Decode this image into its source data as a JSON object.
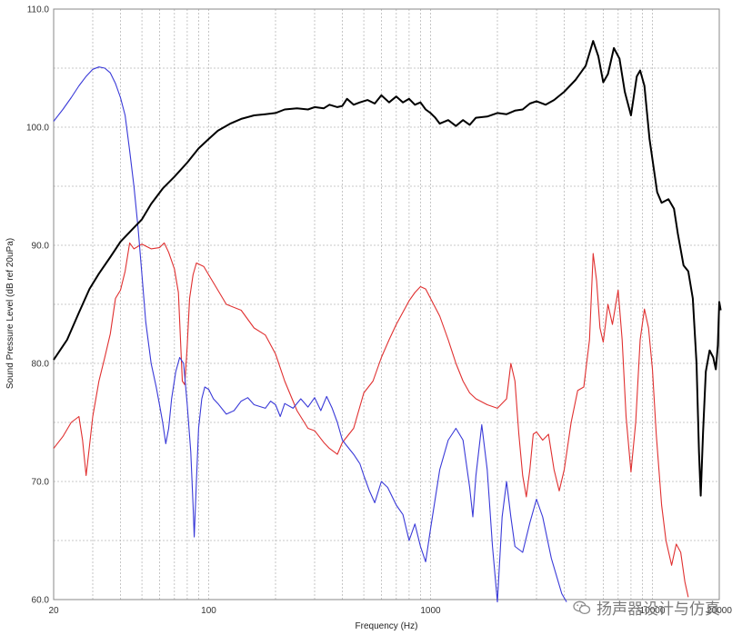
{
  "chart_data": {
    "type": "line",
    "xlabel": "Frequency (Hz)",
    "ylabel": "Sound Pressure Level (dB ref 20uPa)",
    "xscale": "log",
    "xlim": [
      20,
      20000
    ],
    "ylim": [
      60,
      110
    ],
    "x_ticks": [
      {
        "value": 20,
        "label": "20"
      },
      {
        "value": 100,
        "label": "100"
      },
      {
        "value": 1000,
        "label": "1000"
      },
      {
        "value": 10000,
        "label": "10000"
      },
      {
        "value": 20000,
        "label": "20000"
      }
    ],
    "y_ticks": [
      {
        "value": 60,
        "label": "60.0"
      },
      {
        "value": 70,
        "label": "70.0"
      },
      {
        "value": 80,
        "label": "80.0"
      },
      {
        "value": 90,
        "label": "90.0"
      },
      {
        "value": 100,
        "label": "100.0"
      },
      {
        "value": 110,
        "label": "110.0"
      }
    ],
    "grid": true,
    "series": [
      {
        "color": "#000000",
        "points": [
          [
            20,
            80.3
          ],
          [
            23,
            82
          ],
          [
            26,
            84.3
          ],
          [
            29,
            86.3
          ],
          [
            32,
            87.6
          ],
          [
            36,
            89
          ],
          [
            40,
            90.3
          ],
          [
            45,
            91.3
          ],
          [
            50,
            92.2
          ],
          [
            55,
            93.5
          ],
          [
            62,
            94.8
          ],
          [
            70,
            95.8
          ],
          [
            80,
            97
          ],
          [
            90,
            98.2
          ],
          [
            100,
            99
          ],
          [
            110,
            99.7
          ],
          [
            125,
            100.3
          ],
          [
            140,
            100.7
          ],
          [
            160,
            101
          ],
          [
            180,
            101.1
          ],
          [
            200,
            101.2
          ],
          [
            220,
            101.5
          ],
          [
            250,
            101.6
          ],
          [
            280,
            101.5
          ],
          [
            300,
            101.7
          ],
          [
            330,
            101.6
          ],
          [
            350,
            101.9
          ],
          [
            380,
            101.7
          ],
          [
            400,
            101.8
          ],
          [
            420,
            102.4
          ],
          [
            450,
            101.9
          ],
          [
            480,
            102.1
          ],
          [
            520,
            102.3
          ],
          [
            560,
            102
          ],
          [
            600,
            102.7
          ],
          [
            650,
            102.1
          ],
          [
            700,
            102.6
          ],
          [
            750,
            102.1
          ],
          [
            800,
            102.4
          ],
          [
            850,
            101.9
          ],
          [
            900,
            102.1
          ],
          [
            950,
            101.5
          ],
          [
            1000,
            101.2
          ],
          [
            1050,
            100.8
          ],
          [
            1100,
            100.3
          ],
          [
            1200,
            100.6
          ],
          [
            1300,
            100.1
          ],
          [
            1400,
            100.6
          ],
          [
            1500,
            100.2
          ],
          [
            1600,
            100.8
          ],
          [
            1800,
            100.9
          ],
          [
            2000,
            101.2
          ],
          [
            2200,
            101.1
          ],
          [
            2400,
            101.4
          ],
          [
            2600,
            101.5
          ],
          [
            2800,
            102
          ],
          [
            3000,
            102.2
          ],
          [
            3300,
            101.9
          ],
          [
            3600,
            102.3
          ],
          [
            4000,
            103
          ],
          [
            4500,
            104
          ],
          [
            5000,
            105.2
          ],
          [
            5400,
            107.3
          ],
          [
            5700,
            106
          ],
          [
            6000,
            103.8
          ],
          [
            6300,
            104.5
          ],
          [
            6700,
            106.7
          ],
          [
            7100,
            105.8
          ],
          [
            7500,
            103
          ],
          [
            8000,
            101
          ],
          [
            8500,
            104.3
          ],
          [
            8800,
            104.8
          ],
          [
            9200,
            103.5
          ],
          [
            9700,
            99
          ],
          [
            10500,
            94.5
          ],
          [
            11000,
            93.6
          ],
          [
            11800,
            93.9
          ],
          [
            12500,
            93.1
          ],
          [
            13000,
            91
          ],
          [
            13800,
            88.3
          ],
          [
            14500,
            87.8
          ],
          [
            15200,
            85.5
          ],
          [
            15800,
            80
          ],
          [
            16200,
            72.5
          ],
          [
            16500,
            68.8
          ],
          [
            16900,
            74.2
          ],
          [
            17400,
            79.3
          ],
          [
            18100,
            81.1
          ],
          [
            18800,
            80.5
          ],
          [
            19300,
            79.5
          ],
          [
            19700,
            81.5
          ],
          [
            20000,
            85.2
          ],
          [
            20300,
            84.5
          ]
        ]
      },
      {
        "color": "#e03030",
        "points": [
          [
            20,
            72.8
          ],
          [
            22,
            73.8
          ],
          [
            24,
            75
          ],
          [
            26,
            75.5
          ],
          [
            27,
            73.5
          ],
          [
            28,
            70.5
          ],
          [
            29,
            73
          ],
          [
            30,
            75.5
          ],
          [
            32,
            78.5
          ],
          [
            34,
            80.5
          ],
          [
            36,
            82.5
          ],
          [
            38,
            85.5
          ],
          [
            40,
            86.2
          ],
          [
            42,
            87.8
          ],
          [
            44,
            90.2
          ],
          [
            46,
            89.7
          ],
          [
            50,
            90.1
          ],
          [
            55,
            89.7
          ],
          [
            60,
            89.8
          ],
          [
            63,
            90.2
          ],
          [
            66,
            89.4
          ],
          [
            70,
            88
          ],
          [
            73,
            86
          ],
          [
            76,
            78.5
          ],
          [
            78,
            78.2
          ],
          [
            80,
            81.5
          ],
          [
            82,
            85.5
          ],
          [
            85,
            87.5
          ],
          [
            88,
            88.5
          ],
          [
            95,
            88.2
          ],
          [
            100,
            87.5
          ],
          [
            110,
            86.2
          ],
          [
            120,
            85
          ],
          [
            140,
            84.5
          ],
          [
            160,
            83
          ],
          [
            180,
            82.4
          ],
          [
            200,
            80.8
          ],
          [
            220,
            78.5
          ],
          [
            250,
            76
          ],
          [
            280,
            74.5
          ],
          [
            300,
            74.3
          ],
          [
            330,
            73.3
          ],
          [
            350,
            72.8
          ],
          [
            380,
            72.3
          ],
          [
            400,
            73.3
          ],
          [
            450,
            74.5
          ],
          [
            500,
            77.5
          ],
          [
            550,
            78.5
          ],
          [
            600,
            80.5
          ],
          [
            650,
            82
          ],
          [
            700,
            83.3
          ],
          [
            800,
            85.3
          ],
          [
            850,
            86
          ],
          [
            900,
            86.5
          ],
          [
            950,
            86.3
          ],
          [
            1000,
            85.5
          ],
          [
            1100,
            84
          ],
          [
            1200,
            82
          ],
          [
            1300,
            80
          ],
          [
            1400,
            78.5
          ],
          [
            1500,
            77.5
          ],
          [
            1600,
            77
          ],
          [
            1800,
            76.5
          ],
          [
            2000,
            76.2
          ],
          [
            2200,
            77
          ],
          [
            2300,
            80
          ],
          [
            2400,
            78.5
          ],
          [
            2500,
            74
          ],
          [
            2600,
            70.5
          ],
          [
            2700,
            68.7
          ],
          [
            2800,
            71
          ],
          [
            2900,
            74
          ],
          [
            3000,
            74.2
          ],
          [
            3200,
            73.5
          ],
          [
            3400,
            74
          ],
          [
            3600,
            71
          ],
          [
            3800,
            69.2
          ],
          [
            4000,
            71
          ],
          [
            4300,
            75
          ],
          [
            4600,
            77.7
          ],
          [
            4900,
            78
          ],
          [
            5200,
            82
          ],
          [
            5400,
            89.3
          ],
          [
            5600,
            87
          ],
          [
            5800,
            83
          ],
          [
            6000,
            81.8
          ],
          [
            6300,
            85
          ],
          [
            6600,
            83.3
          ],
          [
            7000,
            86.2
          ],
          [
            7300,
            82
          ],
          [
            7600,
            75.5
          ],
          [
            8000,
            70.8
          ],
          [
            8400,
            75
          ],
          [
            8800,
            82
          ],
          [
            9200,
            84.6
          ],
          [
            9600,
            83
          ],
          [
            10000,
            79.5
          ],
          [
            10400,
            74
          ],
          [
            11000,
            68
          ],
          [
            11500,
            65
          ],
          [
            12200,
            62.9
          ],
          [
            12800,
            64.7
          ],
          [
            13400,
            64
          ],
          [
            14000,
            61.5
          ],
          [
            14500,
            60.2
          ]
        ]
      },
      {
        "color": "#3a3ad8",
        "points": [
          [
            20,
            100.5
          ],
          [
            22,
            101.5
          ],
          [
            24,
            102.5
          ],
          [
            26,
            103.5
          ],
          [
            28,
            104.3
          ],
          [
            30,
            104.9
          ],
          [
            32,
            105.1
          ],
          [
            34,
            105
          ],
          [
            36,
            104.6
          ],
          [
            38,
            103.7
          ],
          [
            40,
            102.5
          ],
          [
            42,
            101
          ],
          [
            44,
            98
          ],
          [
            46,
            95
          ],
          [
            48,
            91.5
          ],
          [
            50,
            87.5
          ],
          [
            52,
            83.5
          ],
          [
            55,
            80
          ],
          [
            58,
            78
          ],
          [
            60,
            76.5
          ],
          [
            62,
            75
          ],
          [
            64,
            73.2
          ],
          [
            66,
            74.5
          ],
          [
            68,
            77
          ],
          [
            71,
            79.3
          ],
          [
            74,
            80.5
          ],
          [
            77,
            80
          ],
          [
            80,
            76.5
          ],
          [
            83,
            72.5
          ],
          [
            85,
            68
          ],
          [
            86,
            65.3
          ],
          [
            88,
            70
          ],
          [
            90,
            74.5
          ],
          [
            93,
            77
          ],
          [
            96,
            78
          ],
          [
            100,
            77.8
          ],
          [
            105,
            77
          ],
          [
            110,
            76.6
          ],
          [
            120,
            75.7
          ],
          [
            130,
            76
          ],
          [
            140,
            76.8
          ],
          [
            150,
            77.1
          ],
          [
            160,
            76.5
          ],
          [
            180,
            76.2
          ],
          [
            190,
            76.8
          ],
          [
            200,
            76.5
          ],
          [
            210,
            75.5
          ],
          [
            220,
            76.6
          ],
          [
            240,
            76.2
          ],
          [
            260,
            77
          ],
          [
            280,
            76.3
          ],
          [
            300,
            77.1
          ],
          [
            320,
            76
          ],
          [
            340,
            77.2
          ],
          [
            360,
            76.2
          ],
          [
            380,
            75
          ],
          [
            400,
            73.5
          ],
          [
            420,
            73
          ],
          [
            450,
            72.3
          ],
          [
            480,
            71.5
          ],
          [
            500,
            70.5
          ],
          [
            530,
            69.2
          ],
          [
            560,
            68.2
          ],
          [
            600,
            70
          ],
          [
            640,
            69.5
          ],
          [
            700,
            68
          ],
          [
            750,
            67.2
          ],
          [
            800,
            65
          ],
          [
            850,
            66.4
          ],
          [
            900,
            64.5
          ],
          [
            950,
            63.2
          ],
          [
            1000,
            66
          ],
          [
            1100,
            71
          ],
          [
            1200,
            73.5
          ],
          [
            1300,
            74.5
          ],
          [
            1400,
            73.5
          ],
          [
            1500,
            69.5
          ],
          [
            1550,
            67
          ],
          [
            1600,
            70.5
          ],
          [
            1700,
            74.8
          ],
          [
            1800,
            71
          ],
          [
            1900,
            64.5
          ],
          [
            2000,
            59.8
          ],
          [
            2100,
            67
          ],
          [
            2200,
            70
          ],
          [
            2300,
            67
          ],
          [
            2400,
            64.5
          ],
          [
            2600,
            64
          ],
          [
            2800,
            66.5
          ],
          [
            3000,
            68.5
          ],
          [
            3200,
            67
          ],
          [
            3500,
            63.5
          ],
          [
            3900,
            60.5
          ],
          [
            4100,
            59.8
          ]
        ]
      }
    ]
  },
  "watermark": {
    "text": "扬声器设计与仿真",
    "icon": "wechat-icon"
  }
}
